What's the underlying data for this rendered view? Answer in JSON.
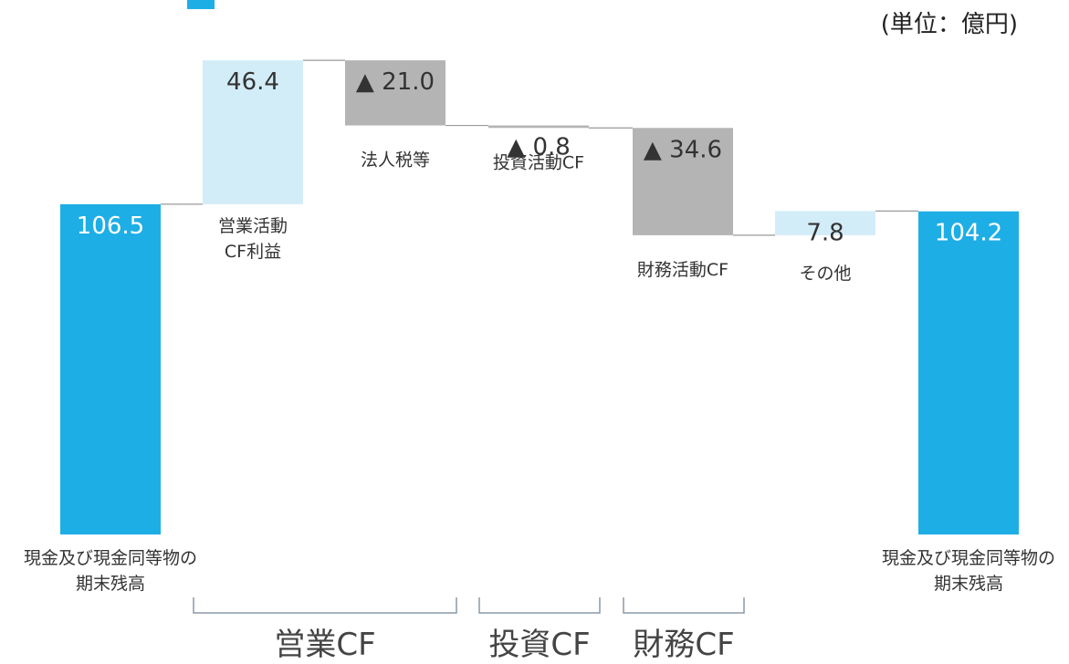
{
  "unit_label": "(単位：億円)",
  "chart_data": {
    "type": "waterfall",
    "title": "",
    "xlabel": "",
    "ylabel": "",
    "unit": "億円",
    "ylim": [
      0,
      131
    ],
    "grid": false,
    "legend": "none",
    "colors": {
      "total": "#1eaee6",
      "increase": "#d3edf8",
      "decrease": "#b4b4b4",
      "connector": "#9a9a9a",
      "bracket": "#8a98a8",
      "text": "#333333"
    },
    "steps": [
      {
        "label_lines": [
          "現金及び現金同等物の",
          "期末残高"
        ],
        "kind": "total",
        "value": 106.5,
        "display": "106.5"
      },
      {
        "label_lines": [
          "営業活動",
          "CF利益"
        ],
        "kind": "increase",
        "value": 46.4,
        "display": "46.4"
      },
      {
        "label_lines": [
          "法人税等"
        ],
        "kind": "decrease",
        "value": -21.0,
        "display": "▲ 21.0"
      },
      {
        "label_lines": [
          "投資活動CF"
        ],
        "kind": "decrease",
        "value": -0.8,
        "display": "▲ 0.8"
      },
      {
        "label_lines": [
          "財務活動CF"
        ],
        "kind": "decrease",
        "value": -34.6,
        "display": "▲ 34.6"
      },
      {
        "label_lines": [
          "その他"
        ],
        "kind": "increase",
        "value": 7.8,
        "display": "7.8"
      },
      {
        "label_lines": [
          "現金及び現金同等物の",
          "期末残高"
        ],
        "kind": "total",
        "value": 104.2,
        "display": "104.2"
      }
    ],
    "groups": [
      {
        "label": "営業CF",
        "from": 1,
        "to": 2
      },
      {
        "label": "投資CF",
        "from": 3,
        "to": 3
      },
      {
        "label": "財務CF",
        "from": 4,
        "to": 4
      }
    ]
  }
}
